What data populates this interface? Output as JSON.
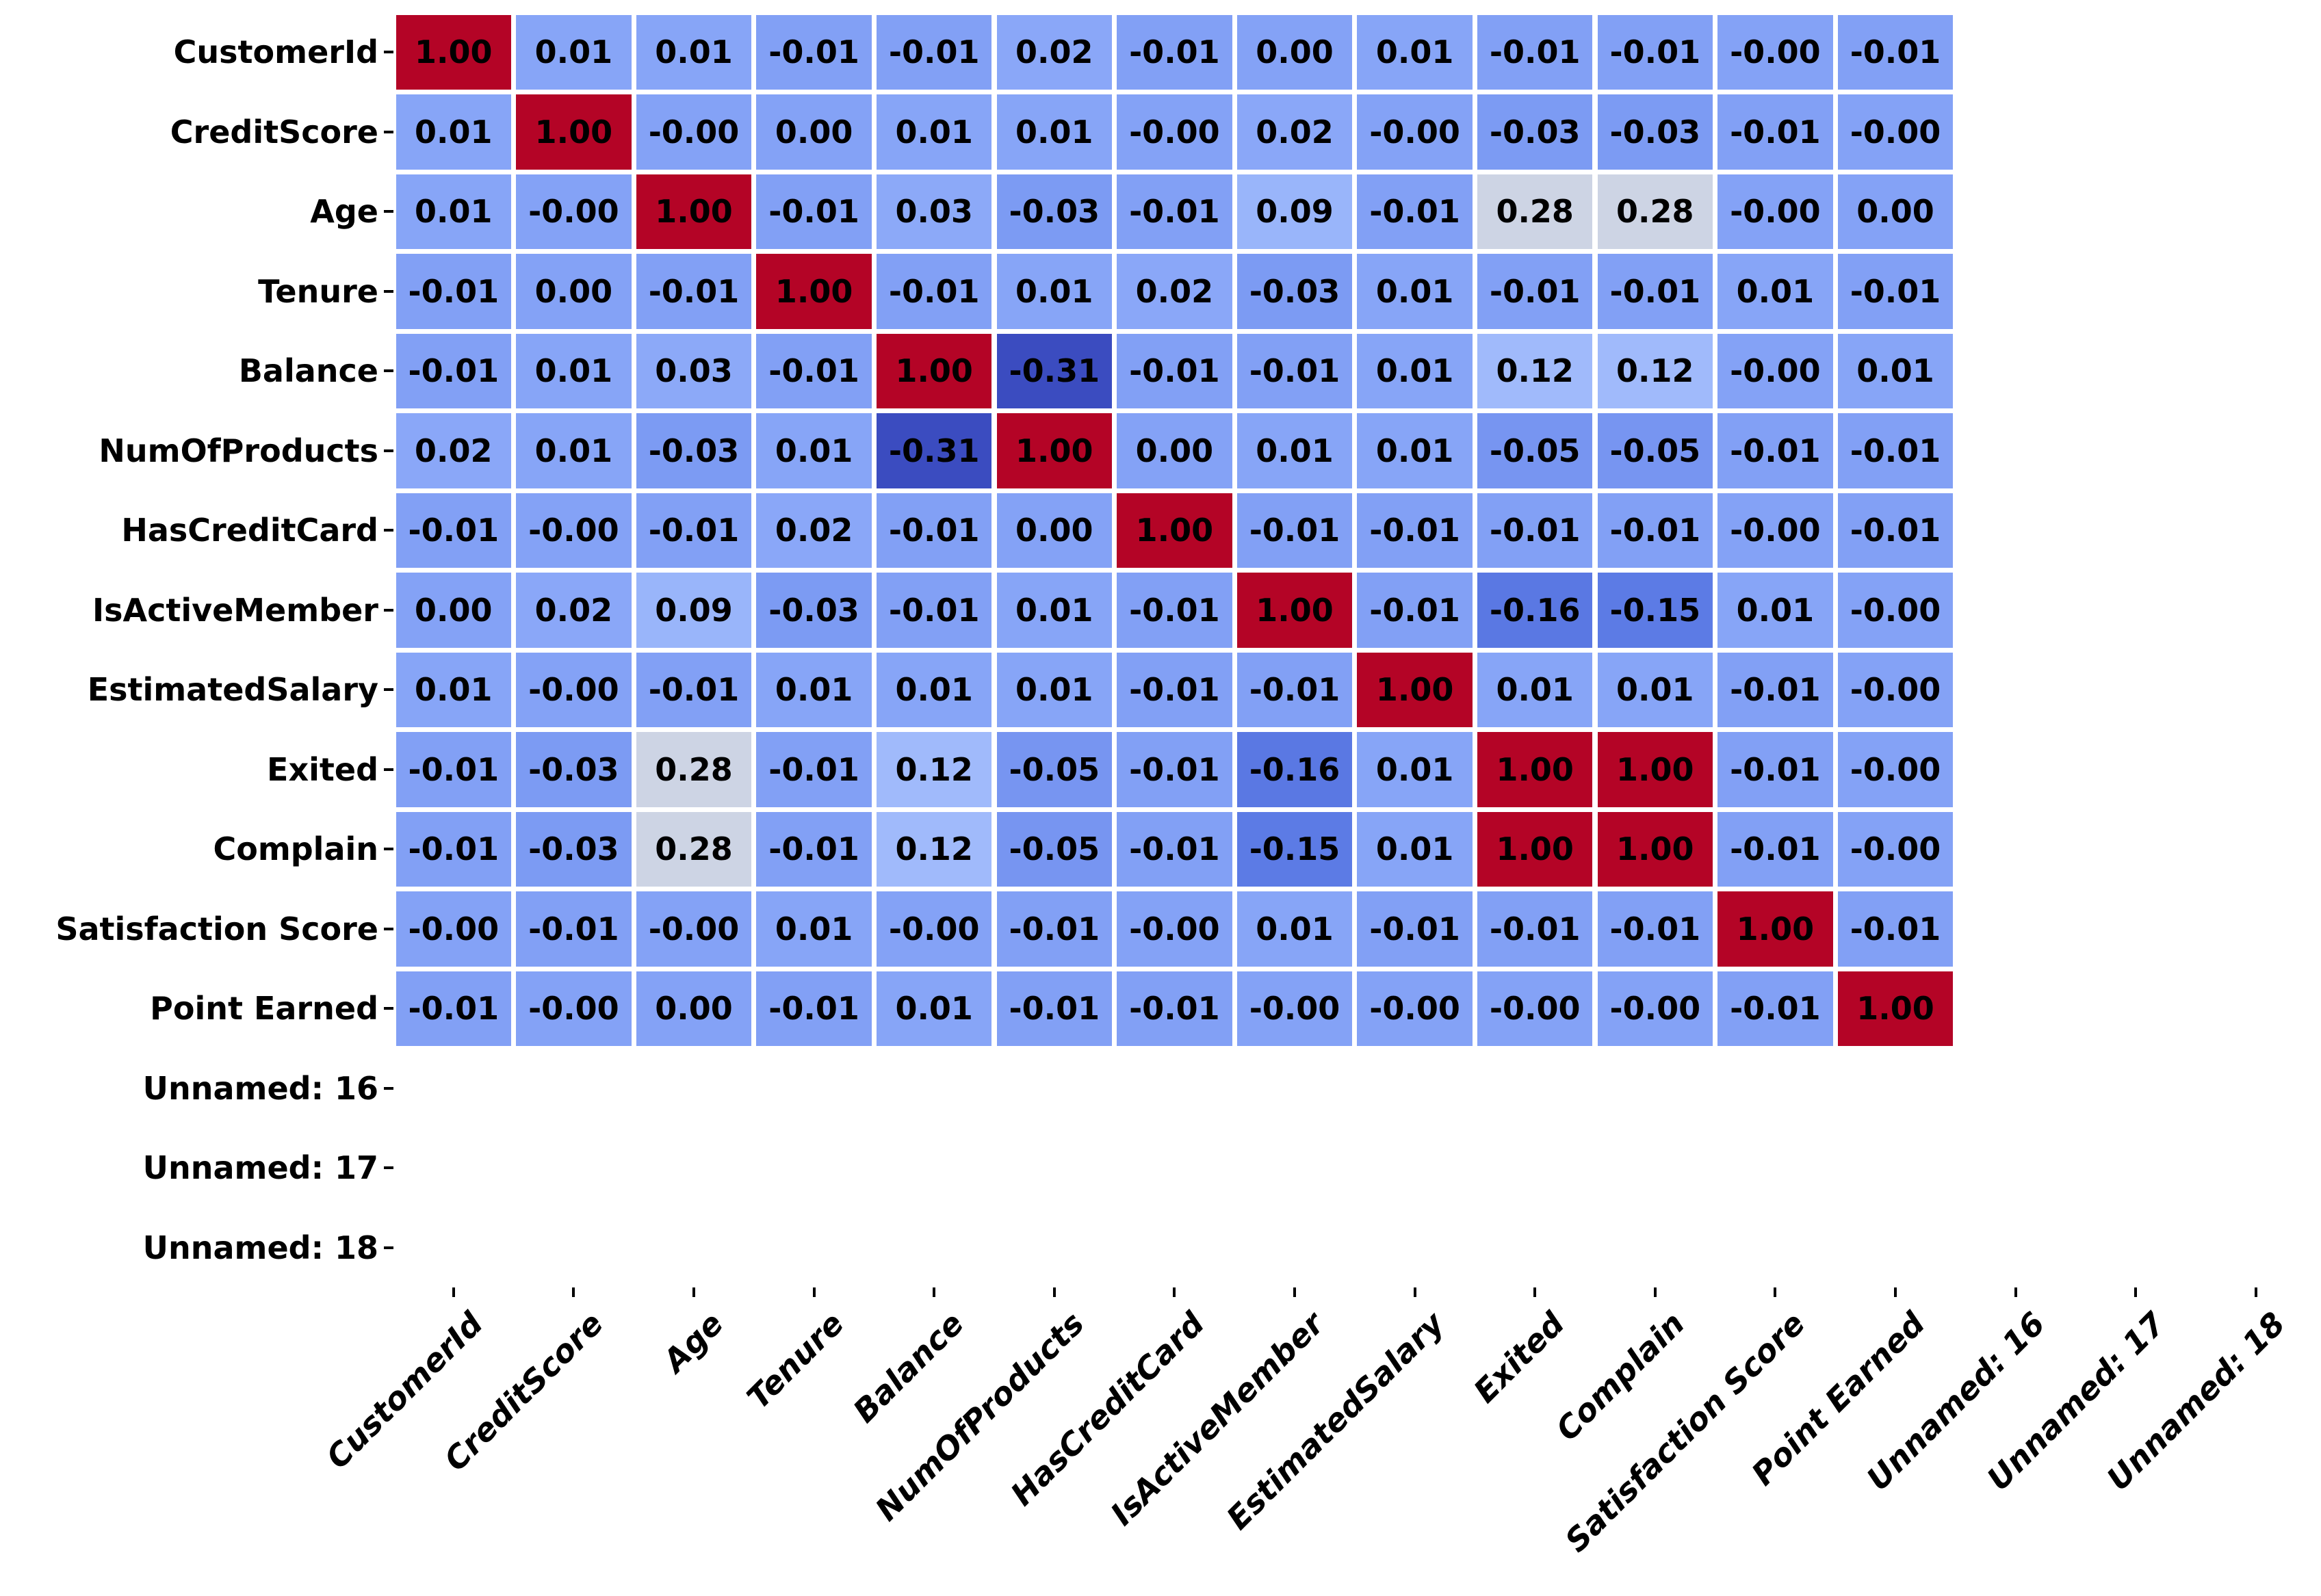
{
  "figure": {
    "background": "#ffffff",
    "title": ""
  },
  "chart_data": {
    "type": "heatmap",
    "title": "",
    "xlabel": "",
    "ylabel": "",
    "legend_position": "none",
    "grid": "white-cell-borders",
    "categories": [
      "CustomerId",
      "CreditScore",
      "Age",
      "Tenure",
      "Balance",
      "NumOfProducts",
      "HasCreditCard",
      "IsActiveMember",
      "EstimatedSalary",
      "Exited",
      "Complain",
      "Satisfaction Score",
      "Point Earned",
      "Unnamed: 16",
      "Unnamed: 17",
      "Unnamed: 18"
    ],
    "x_categories_same_as_y": true,
    "annotated_block_size": 13,
    "empty_tail_categories": [
      "Unnamed: 16",
      "Unnamed: 17",
      "Unnamed: 18"
    ],
    "values": [
      [
        "1.00",
        "0.01",
        "0.01",
        "-0.01",
        "-0.01",
        "0.02",
        "-0.01",
        "0.00",
        "0.01",
        "-0.01",
        "-0.01",
        "-0.00",
        "-0.01"
      ],
      [
        "0.01",
        "1.00",
        "-0.00",
        "0.00",
        "0.01",
        "0.01",
        "-0.00",
        "0.02",
        "-0.00",
        "-0.03",
        "-0.03",
        "-0.01",
        "-0.00"
      ],
      [
        "0.01",
        "-0.00",
        "1.00",
        "-0.01",
        "0.03",
        "-0.03",
        "-0.01",
        "0.09",
        "-0.01",
        "0.28",
        "0.28",
        "-0.00",
        "0.00"
      ],
      [
        "-0.01",
        "0.00",
        "-0.01",
        "1.00",
        "-0.01",
        "0.01",
        "0.02",
        "-0.03",
        "0.01",
        "-0.01",
        "-0.01",
        "0.01",
        "-0.01"
      ],
      [
        "-0.01",
        "0.01",
        "0.03",
        "-0.01",
        "1.00",
        "-0.31",
        "-0.01",
        "-0.01",
        "0.01",
        "0.12",
        "0.12",
        "-0.00",
        "0.01"
      ],
      [
        "0.02",
        "0.01",
        "-0.03",
        "0.01",
        "-0.31",
        "1.00",
        "0.00",
        "0.01",
        "0.01",
        "-0.05",
        "-0.05",
        "-0.01",
        "-0.01"
      ],
      [
        "-0.01",
        "-0.00",
        "-0.01",
        "0.02",
        "-0.01",
        "0.00",
        "1.00",
        "-0.01",
        "-0.01",
        "-0.01",
        "-0.01",
        "-0.00",
        "-0.01"
      ],
      [
        "0.00",
        "0.02",
        "0.09",
        "-0.03",
        "-0.01",
        "0.01",
        "-0.01",
        "1.00",
        "-0.01",
        "-0.16",
        "-0.15",
        "0.01",
        "-0.00"
      ],
      [
        "0.01",
        "-0.00",
        "-0.01",
        "0.01",
        "0.01",
        "0.01",
        "-0.01",
        "-0.01",
        "1.00",
        "0.01",
        "0.01",
        "-0.01",
        "-0.00"
      ],
      [
        "-0.01",
        "-0.03",
        "0.28",
        "-0.01",
        "0.12",
        "-0.05",
        "-0.01",
        "-0.16",
        "0.01",
        "1.00",
        "1.00",
        "-0.01",
        "-0.00"
      ],
      [
        "-0.01",
        "-0.03",
        "0.28",
        "-0.01",
        "0.12",
        "-0.05",
        "-0.01",
        "-0.15",
        "0.01",
        "1.00",
        "1.00",
        "-0.01",
        "-0.00"
      ],
      [
        "-0.00",
        "-0.01",
        "-0.00",
        "0.01",
        "-0.00",
        "-0.01",
        "-0.00",
        "0.01",
        "-0.01",
        "-0.01",
        "-0.01",
        "1.00",
        "-0.01"
      ],
      [
        "-0.01",
        "-0.00",
        "0.00",
        "-0.01",
        "0.01",
        "-0.01",
        "-0.01",
        "-0.00",
        "-0.00",
        "-0.00",
        "-0.00",
        "-0.01",
        "1.00"
      ]
    ],
    "value_format": "two-decimal, negative zero preserved",
    "vmin": -0.31,
    "vmax": 1.0,
    "cell_text_color": "#000000",
    "grid_color": "#ffffff",
    "tick_color": "#000000",
    "colormap": {
      "name": "coolwarm",
      "anchors": [
        [
          0.0,
          "#3b4cc0"
        ],
        [
          0.125,
          "#5d7ce6"
        ],
        [
          0.25,
          "#89a7f8"
        ],
        [
          0.375,
          "#adc6fd"
        ],
        [
          0.4375,
          "#c9d2e6"
        ],
        [
          0.5,
          "#dddddd"
        ],
        [
          0.75,
          "#ee8468"
        ],
        [
          1.0,
          "#b40426"
        ]
      ]
    }
  }
}
